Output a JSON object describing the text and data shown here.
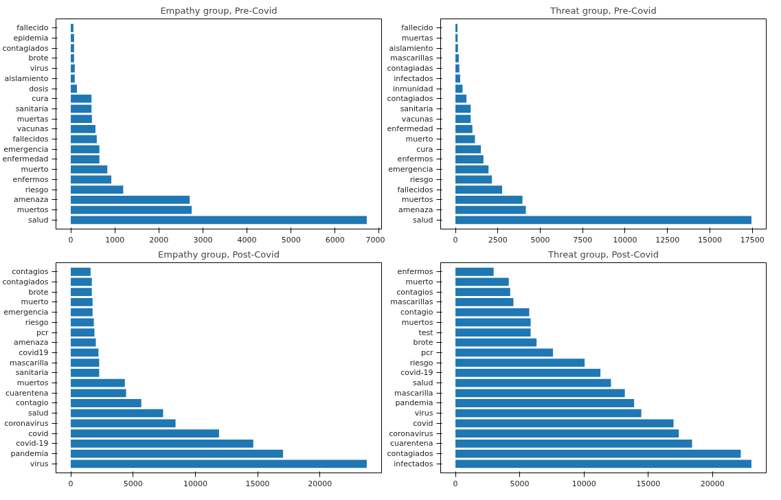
{
  "chart_data": [
    {
      "type": "bar",
      "orientation": "horizontal",
      "title": "Empathy group, Pre-Covid",
      "categories": [
        "fallecido",
        "epidemia",
        "contagiados",
        "brote",
        "virus",
        "aislamiento",
        "dosis",
        "cura",
        "sanitaria",
        "muertas",
        "vacunas",
        "fallecidos",
        "emergencia",
        "enfermedad",
        "muerto",
        "enfermos",
        "riesgo",
        "amenaza",
        "muertos",
        "salud"
      ],
      "values": [
        60,
        75,
        75,
        75,
        90,
        90,
        140,
        470,
        470,
        480,
        560,
        590,
        650,
        650,
        830,
        920,
        1190,
        2700,
        2745,
        6720
      ],
      "color": "#1f77b4",
      "xlim": [
        -336,
        7056
      ],
      "xticks": [
        0,
        1000,
        2000,
        3000,
        4000,
        5000,
        6000,
        7000
      ],
      "grid": false
    },
    {
      "type": "bar",
      "orientation": "horizontal",
      "title": "Threat group, Pre-Covid",
      "categories": [
        "fallecido",
        "muertas",
        "aislamiento",
        "mascarillas",
        "contagiadas",
        "infectados",
        "inmunidad",
        "contagiados",
        "sanitaria",
        "vacunas",
        "enfermedad",
        "muerto",
        "cura",
        "enfermos",
        "emergencia",
        "riesgo",
        "fallecidos",
        "muertos",
        "amenaza",
        "salud"
      ],
      "values": [
        120,
        130,
        150,
        200,
        230,
        280,
        420,
        650,
        900,
        900,
        1000,
        1150,
        1500,
        1650,
        1950,
        2150,
        2750,
        3950,
        4150,
        17450
      ],
      "color": "#1f77b4",
      "xlim": [
        -872,
        18322
      ],
      "xticks": [
        0,
        2500,
        5000,
        7500,
        10000,
        12500,
        15000,
        17500
      ],
      "grid": false
    },
    {
      "type": "bar",
      "orientation": "horizontal",
      "title": "Empathy group, Post-Covid",
      "categories": [
        "contagios",
        "contagiados",
        "brote",
        "muerto",
        "emergencia",
        "riesgo",
        "pcr",
        "amenaza",
        "covid19",
        "mascarilla",
        "sanitaria",
        "muertos",
        "cuarentena",
        "contagio",
        "salud",
        "coronavirus",
        "covid",
        "covid-19",
        "pandemia",
        "virus"
      ],
      "values": [
        1590,
        1690,
        1690,
        1750,
        1750,
        1850,
        1900,
        2010,
        2220,
        2280,
        2280,
        4340,
        4440,
        5660,
        7410,
        8410,
        11900,
        14650,
        17040,
        23760
      ],
      "color": "#1f77b4",
      "xlim": [
        -1188,
        24948
      ],
      "xticks": [
        0,
        5000,
        10000,
        15000,
        20000
      ],
      "grid": false
    },
    {
      "type": "bar",
      "orientation": "horizontal",
      "title": "Threat group, Post-Covid",
      "categories": [
        "enfermos",
        "muerto",
        "contagios",
        "mascarillas",
        "contagio",
        "muertos",
        "test",
        "brote",
        "pcr",
        "riesgo",
        "covid-19",
        "salud",
        "mascarilla",
        "pandemia",
        "virus",
        "covid",
        "coronavirus",
        "cuarentena",
        "contagiados",
        "infectados"
      ],
      "values": [
        2970,
        4150,
        4260,
        4510,
        5740,
        5850,
        5850,
        6310,
        7590,
        10050,
        11280,
        12100,
        13180,
        13900,
        14460,
        16970,
        17380,
        18410,
        22200,
        23030
      ],
      "color": "#1f77b4",
      "xlim": [
        -1152,
        24182
      ],
      "xticks": [
        0,
        5000,
        10000,
        15000,
        20000
      ],
      "grid": false
    }
  ]
}
